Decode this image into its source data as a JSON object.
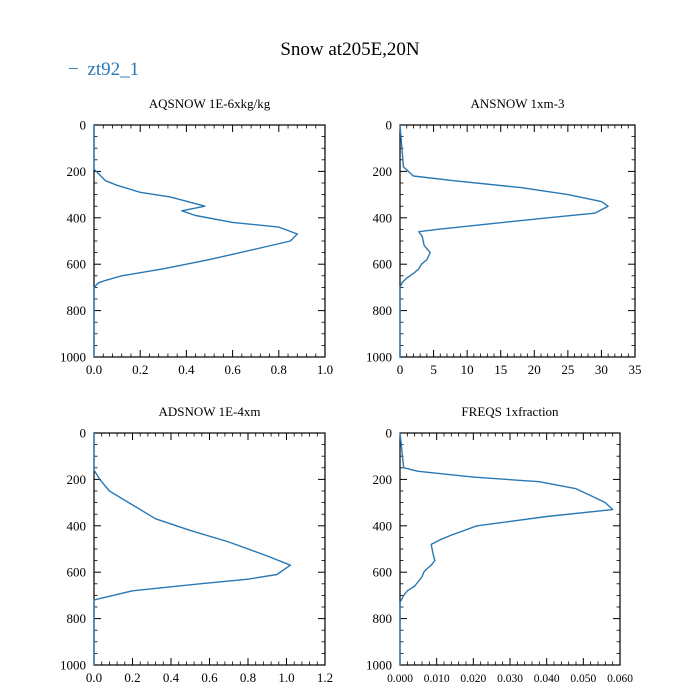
{
  "figure": {
    "title": "Snow at205E,20N",
    "series_color": "#2878b5",
    "legend": [
      {
        "label": "zt92_1",
        "color": "#2878b5",
        "symbol": "−"
      }
    ],
    "legend_position": "top-left"
  },
  "chart_data": [
    {
      "type": "line",
      "title": "AQSNOW  1E-6xkg/kg",
      "series": [
        {
          "name": "zt92_1",
          "x": [
            0,
            0,
            0.02,
            0.05,
            0.12,
            0.3,
            0.5,
            0.72,
            0.85,
            0.88,
            0.8,
            0.6,
            0.44,
            0.38,
            0.48,
            0.33,
            0.2,
            0.1,
            0.05,
            0.02,
            0,
            0
          ],
          "y": [
            1000,
            700,
            680,
            670,
            650,
            620,
            580,
            530,
            500,
            470,
            440,
            420,
            390,
            370,
            350,
            310,
            290,
            260,
            240,
            210,
            190,
            0
          ]
        }
      ],
      "xlim": [
        0,
        1.0
      ],
      "ylim": [
        1000,
        0
      ],
      "xticks": [
        0.0,
        0.2,
        0.4,
        0.6,
        0.8,
        1.0
      ],
      "xtick_labels": [
        "0.0",
        "0.2",
        "0.4",
        "0.6",
        "0.8",
        "1.0"
      ],
      "yticks": [
        0,
        200,
        400,
        600,
        800,
        1000
      ],
      "ytick_labels": [
        "0",
        "200",
        "400",
        "600",
        "800",
        "1000"
      ]
    },
    {
      "type": "line",
      "title": "ANSNOW  1xm-3",
      "series": [
        {
          "name": "zt92_1",
          "x": [
            0,
            0,
            0.3,
            1,
            2,
            2.8,
            3.2,
            4,
            4.5,
            3.6,
            3.3,
            2.8,
            5.5,
            12,
            22,
            29,
            31,
            30,
            25,
            18,
            8,
            2,
            0.5,
            0
          ],
          "y": [
            1000,
            700,
            680,
            660,
            640,
            620,
            600,
            580,
            550,
            520,
            480,
            460,
            450,
            430,
            400,
            380,
            350,
            330,
            300,
            270,
            240,
            220,
            180,
            0
          ]
        }
      ],
      "xlim": [
        0,
        35
      ],
      "ylim": [
        1000,
        0
      ],
      "xticks": [
        0,
        5,
        10,
        15,
        20,
        25,
        30,
        35
      ],
      "xtick_labels": [
        "0",
        "5",
        "10",
        "15",
        "20",
        "25",
        "30",
        "35"
      ],
      "yticks": [
        0,
        200,
        400,
        600,
        800,
        1000
      ],
      "ytick_labels": [
        "0",
        "200",
        "400",
        "600",
        "800",
        "1000"
      ]
    },
    {
      "type": "line",
      "title": "ADSNOW  1E-4xm",
      "series": [
        {
          "name": "zt92_1",
          "x": [
            0,
            0,
            0.05,
            0.2,
            0.55,
            0.8,
            0.95,
            1.02,
            0.9,
            0.7,
            0.5,
            0.32,
            0.18,
            0.08,
            0.03,
            0,
            0
          ],
          "y": [
            1000,
            720,
            710,
            680,
            650,
            630,
            610,
            570,
            530,
            470,
            420,
            370,
            300,
            250,
            200,
            160,
            0
          ]
        }
      ],
      "xlim": [
        0,
        1.2
      ],
      "ylim": [
        1000,
        0
      ],
      "xticks": [
        0.0,
        0.2,
        0.4,
        0.6,
        0.8,
        1.0,
        1.2
      ],
      "xtick_labels": [
        "0.0",
        "0.2",
        "0.4",
        "0.6",
        "0.8",
        "1.0",
        "1.2"
      ],
      "yticks": [
        0,
        200,
        400,
        600,
        800,
        1000
      ],
      "ytick_labels": [
        "0",
        "200",
        "400",
        "600",
        "800",
        "1000"
      ]
    },
    {
      "type": "line",
      "title": "FREQS  1xfraction",
      "series": [
        {
          "name": "zt92_1",
          "x": [
            0,
            0,
            0.001,
            0.002,
            0.003,
            0.004,
            0.005,
            0.006,
            0.0065,
            0.007,
            0.0085,
            0.0095,
            0.009,
            0.0085,
            0.011,
            0.014,
            0.021,
            0.04,
            0.058,
            0.056,
            0.052,
            0.048,
            0.038,
            0.02,
            0.005,
            0.001,
            0
          ],
          "y": [
            1000,
            730,
            700,
            680,
            670,
            660,
            640,
            620,
            600,
            590,
            570,
            550,
            520,
            480,
            460,
            440,
            400,
            360,
            330,
            300,
            270,
            240,
            210,
            190,
            165,
            150,
            0
          ]
        }
      ],
      "xlim": [
        0,
        0.06
      ],
      "ylim": [
        1000,
        0
      ],
      "xticks": [
        0.0,
        0.01,
        0.02,
        0.03,
        0.04,
        0.05,
        0.06
      ],
      "xtick_labels": [
        "0.000",
        "0.010",
        "0.020",
        "0.030",
        "0.040",
        "0.050",
        "0.060"
      ],
      "yticks": [
        0,
        200,
        400,
        600,
        800,
        1000
      ],
      "ytick_labels": [
        "0",
        "200",
        "400",
        "600",
        "800",
        "1000"
      ]
    }
  ]
}
